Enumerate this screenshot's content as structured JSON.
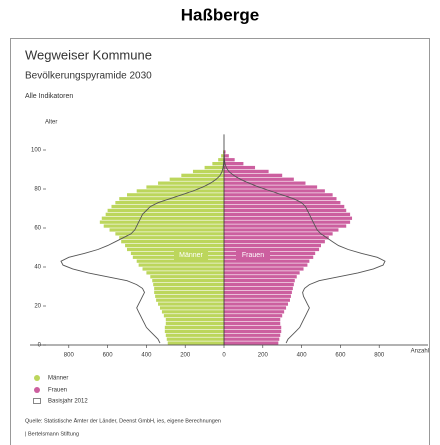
{
  "header": {
    "title": "Haßberge"
  },
  "chart_data": {
    "type": "pyramid",
    "title": "Wegweiser Kommune",
    "subtitle": "Bevölkerungspyramide 2030",
    "note": "Alle Indikatoren",
    "y_label": "Alter",
    "x_label": "Anzahl",
    "x": [
      0,
      2,
      4,
      6,
      8,
      10,
      12,
      14,
      16,
      18,
      20,
      22,
      24,
      26,
      28,
      30,
      32,
      34,
      36,
      38,
      40,
      42,
      44,
      46,
      48,
      50,
      52,
      54,
      56,
      58,
      60,
      62,
      64,
      66,
      68,
      70,
      72,
      74,
      76,
      78,
      80,
      82,
      84,
      86,
      88,
      90,
      92,
      94,
      96,
      98
    ],
    "series": [
      {
        "name": "Männer",
        "color": "#bcd65c",
        "side": "left",
        "values": [
          290,
          295,
          300,
          305,
          305,
          300,
          300,
          310,
          320,
          330,
          340,
          350,
          355,
          360,
          360,
          365,
          370,
          380,
          400,
          420,
          440,
          450,
          470,
          480,
          500,
          510,
          530,
          540,
          560,
          590,
          620,
          640,
          630,
          610,
          600,
          580,
          560,
          540,
          500,
          450,
          400,
          340,
          280,
          220,
          160,
          100,
          60,
          30,
          15,
          5
        ]
      },
      {
        "name": "Frauen",
        "color": "#cc5f9f",
        "side": "right",
        "values": [
          280,
          285,
          290,
          295,
          295,
          290,
          290,
          300,
          310,
          320,
          330,
          340,
          345,
          350,
          355,
          360,
          365,
          375,
          390,
          410,
          430,
          440,
          460,
          470,
          490,
          500,
          520,
          540,
          560,
          590,
          630,
          650,
          660,
          650,
          630,
          620,
          600,
          580,
          560,
          520,
          480,
          420,
          360,
          300,
          230,
          160,
          100,
          55,
          25,
          8
        ]
      }
    ],
    "baseline": {
      "name": "Basisjahr 2012",
      "color": "#555555",
      "left": [
        330,
        340,
        360,
        380,
        400,
        410,
        420,
        430,
        440,
        450,
        440,
        430,
        420,
        410,
        420,
        450,
        500,
        600,
        700,
        780,
        830,
        840,
        800,
        720,
        650,
        600,
        560,
        520,
        480,
        460,
        450,
        440,
        430,
        420,
        400,
        380,
        340,
        280,
        220,
        160,
        110,
        70,
        40,
        20,
        10,
        5,
        2,
        1,
        0,
        0
      ],
      "right": [
        320,
        330,
        350,
        370,
        390,
        400,
        410,
        420,
        430,
        440,
        430,
        420,
        410,
        405,
        415,
        440,
        490,
        590,
        690,
        770,
        820,
        830,
        790,
        710,
        640,
        590,
        560,
        530,
        500,
        480,
        470,
        460,
        450,
        440,
        430,
        420,
        400,
        360,
        300,
        240,
        180,
        130,
        85,
        50,
        25,
        12,
        5,
        2,
        1,
        0
      ]
    },
    "xlim": [
      -1000,
      1000
    ],
    "xticks": [
      {
        "value": -800,
        "label": "800"
      },
      {
        "value": -600,
        "label": "600"
      },
      {
        "value": -400,
        "label": "400"
      },
      {
        "value": -200,
        "label": "200"
      },
      0,
      200,
      400,
      600,
      800
    ],
    "ylim": [
      0,
      108
    ],
    "yticks": [
      0,
      20,
      40,
      60,
      80,
      100
    ],
    "source": [
      "Quelle: Statistische Ämter der Länder, Deenst GmbH, ies, eigene Berechnungen",
      "| Bertelsmann Stiftung"
    ]
  }
}
